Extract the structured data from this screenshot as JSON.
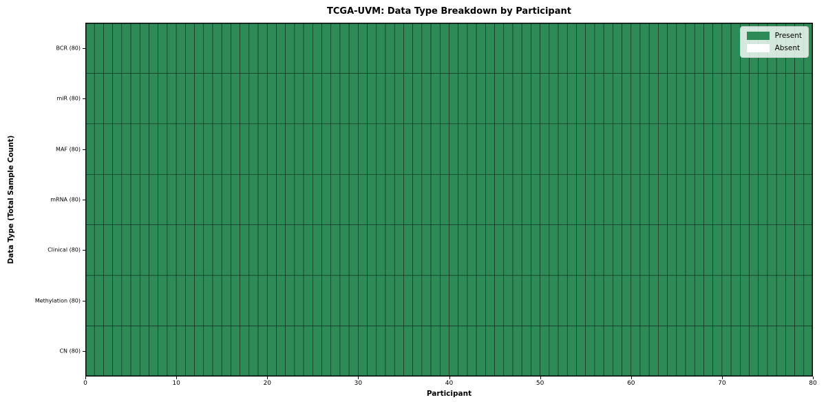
{
  "figure": {
    "title": "TCGA-UVM: Data Type Breakdown by Participant",
    "xlabel": "Participant",
    "ylabel": "Data Type (Total Sample Count)"
  },
  "legend": {
    "position": "upper right",
    "items": [
      {
        "label": "Present",
        "color": "#2e8b57"
      },
      {
        "label": "Absent",
        "color": "#ffffff"
      }
    ]
  },
  "chart_data": {
    "type": "heatmap",
    "title": "TCGA-UVM: Data Type Breakdown by Participant",
    "xlabel": "Participant",
    "ylabel": "Data Type (Total Sample Count)",
    "xlim": [
      0,
      80
    ],
    "x_ticks": [
      0,
      10,
      20,
      30,
      40,
      50,
      60,
      70,
      80
    ],
    "n_participants": 80,
    "rows": [
      {
        "label": "BCR (80)",
        "present_count": 80,
        "absent_count": 0
      },
      {
        "label": "miR (80)",
        "present_count": 80,
        "absent_count": 0
      },
      {
        "label": "MAF (80)",
        "present_count": 80,
        "absent_count": 0
      },
      {
        "label": "mRNA (80)",
        "present_count": 80,
        "absent_count": 0
      },
      {
        "label": "Clinical (80)",
        "present_count": 80,
        "absent_count": 0
      },
      {
        "label": "Methylation (80)",
        "present_count": 80,
        "absent_count": 0
      },
      {
        "label": "CN (80)",
        "present_count": 80,
        "absent_count": 0
      }
    ],
    "all_cells_present": true,
    "cell_fill_color": "#2e8b57",
    "cell_border_color": "#0f2a1c",
    "axis_color": "#000000",
    "grid": "cell-borders",
    "legend_entries": [
      "Present",
      "Absent"
    ]
  }
}
